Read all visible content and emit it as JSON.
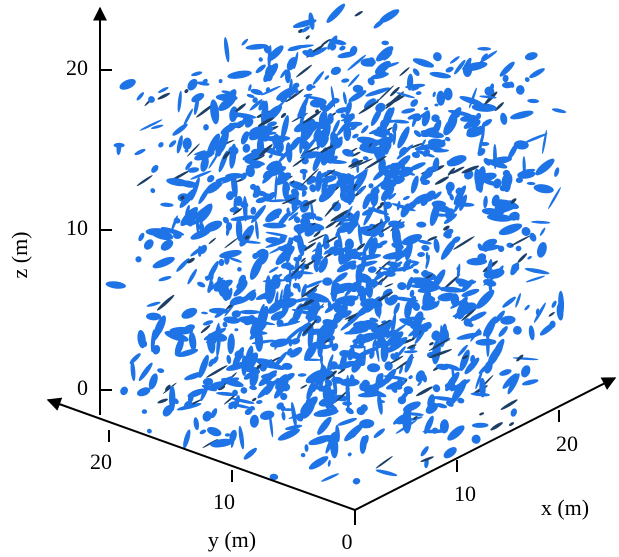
{
  "axes": {
    "x": {
      "label": "x (m)",
      "ticks": [
        10,
        20
      ]
    },
    "y": {
      "label": "y (m)",
      "ticks": [
        0,
        10,
        20
      ]
    },
    "z": {
      "label": "z (m)",
      "ticks": [
        0,
        10,
        20
      ]
    }
  }
}
